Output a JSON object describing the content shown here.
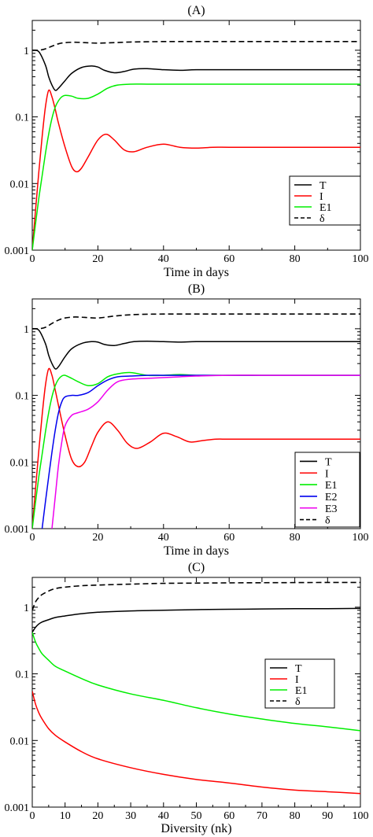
{
  "chart_data": [
    {
      "type": "line",
      "title": "(A)",
      "xlabel": "Time in days",
      "ylabel": "",
      "xlim": [
        0,
        100
      ],
      "ylim": [
        0.001,
        2.8
      ],
      "yscale": "log",
      "x_ticks": [
        "0",
        "20",
        "40",
        "60",
        "80",
        "100"
      ],
      "y_ticks": [
        "0.001",
        "0.01",
        "0.1",
        "1"
      ],
      "legend_position": "bottom-right",
      "series": [
        {
          "name": "T",
          "color": "#000000",
          "dash": false,
          "x": [
            0,
            2,
            4,
            5,
            6,
            7,
            8,
            10,
            12,
            15,
            18,
            20,
            22,
            25,
            28,
            31,
            35,
            40,
            45,
            50,
            60,
            70,
            80,
            90,
            100
          ],
          "y": [
            1.0,
            0.95,
            0.6,
            0.4,
            0.3,
            0.25,
            0.27,
            0.35,
            0.45,
            0.55,
            0.58,
            0.56,
            0.5,
            0.46,
            0.48,
            0.52,
            0.53,
            0.51,
            0.5,
            0.51,
            0.51,
            0.51,
            0.51,
            0.51,
            0.51
          ]
        },
        {
          "name": "I",
          "color": "#ff0000",
          "dash": false,
          "x": [
            0,
            1,
            2,
            3,
            4,
            5,
            6,
            7,
            8,
            10,
            12,
            13.5,
            15,
            17,
            20,
            22.5,
            25,
            28,
            31,
            35,
            40,
            45,
            50,
            55,
            60,
            70,
            80,
            90,
            100
          ],
          "y": [
            0.001,
            0.004,
            0.015,
            0.05,
            0.14,
            0.25,
            0.2,
            0.13,
            0.08,
            0.035,
            0.018,
            0.015,
            0.017,
            0.025,
            0.045,
            0.055,
            0.045,
            0.032,
            0.03,
            0.035,
            0.039,
            0.035,
            0.034,
            0.035,
            0.035,
            0.035,
            0.035,
            0.035,
            0.035
          ]
        },
        {
          "name": "E1",
          "color": "#00ee00",
          "dash": false,
          "x": [
            0,
            1,
            2,
            3,
            4,
            5,
            6,
            7,
            8,
            9,
            10,
            12,
            14,
            17,
            20,
            23,
            26,
            30,
            35,
            40,
            50,
            60,
            70,
            80,
            90,
            100
          ],
          "y": [
            0.001,
            0.0025,
            0.006,
            0.013,
            0.028,
            0.055,
            0.095,
            0.14,
            0.175,
            0.2,
            0.21,
            0.205,
            0.19,
            0.19,
            0.22,
            0.27,
            0.3,
            0.31,
            0.31,
            0.31,
            0.31,
            0.31,
            0.31,
            0.31,
            0.31,
            0.31
          ]
        },
        {
          "name": "δ",
          "color": "#000000",
          "dash": true,
          "x": [
            0,
            2,
            4,
            6,
            8,
            10,
            13,
            16,
            20,
            25,
            30,
            35,
            40,
            50,
            60,
            70,
            80,
            90,
            100
          ],
          "y": [
            1.0,
            1.0,
            1.05,
            1.15,
            1.25,
            1.3,
            1.32,
            1.3,
            1.28,
            1.3,
            1.33,
            1.34,
            1.35,
            1.35,
            1.35,
            1.35,
            1.35,
            1.35,
            1.35
          ]
        }
      ]
    },
    {
      "type": "line",
      "title": "(B)",
      "xlabel": "Time in days",
      "ylabel": "",
      "xlim": [
        0,
        100
      ],
      "ylim": [
        0.001,
        2.8
      ],
      "yscale": "log",
      "x_ticks": [
        "0",
        "20",
        "40",
        "60",
        "80",
        "100"
      ],
      "y_ticks": [
        "0.001",
        "0.01",
        "0.1",
        "1"
      ],
      "legend_position": "bottom-right",
      "series": [
        {
          "name": "T",
          "color": "#000000",
          "dash": false,
          "x": [
            0,
            2,
            4,
            5,
            6,
            7,
            8,
            10,
            12,
            15,
            18,
            20,
            22,
            25,
            28,
            31,
            35,
            40,
            45,
            50,
            60,
            70,
            80,
            90,
            100
          ],
          "y": [
            1.0,
            0.95,
            0.6,
            0.4,
            0.3,
            0.25,
            0.27,
            0.38,
            0.5,
            0.6,
            0.64,
            0.63,
            0.58,
            0.56,
            0.6,
            0.64,
            0.65,
            0.64,
            0.63,
            0.64,
            0.64,
            0.64,
            0.64,
            0.64,
            0.64
          ]
        },
        {
          "name": "I",
          "color": "#ff0000",
          "dash": false,
          "x": [
            0,
            1,
            2,
            3,
            4,
            5,
            6,
            7,
            8,
            10,
            12,
            14,
            16,
            18,
            20,
            23,
            26,
            29,
            32,
            36,
            40,
            44,
            48,
            52,
            56,
            60,
            70,
            80,
            90,
            100
          ],
          "y": [
            0.001,
            0.004,
            0.015,
            0.05,
            0.14,
            0.25,
            0.2,
            0.12,
            0.07,
            0.025,
            0.011,
            0.0085,
            0.01,
            0.017,
            0.028,
            0.04,
            0.03,
            0.019,
            0.016,
            0.02,
            0.027,
            0.024,
            0.02,
            0.021,
            0.022,
            0.022,
            0.022,
            0.022,
            0.022,
            0.022
          ]
        },
        {
          "name": "E1",
          "color": "#00ee00",
          "dash": false,
          "x": [
            0,
            1,
            2,
            3,
            4,
            5,
            6,
            7,
            8,
            9,
            10,
            12,
            14,
            17,
            20,
            23,
            26,
            30,
            35,
            40,
            45,
            50,
            60,
            70,
            80,
            90,
            100
          ],
          "y": [
            0.001,
            0.0025,
            0.006,
            0.013,
            0.028,
            0.055,
            0.095,
            0.14,
            0.175,
            0.195,
            0.2,
            0.18,
            0.16,
            0.14,
            0.15,
            0.19,
            0.21,
            0.22,
            0.2,
            0.2,
            0.205,
            0.2,
            0.2,
            0.2,
            0.2,
            0.2,
            0.2
          ]
        },
        {
          "name": "E2",
          "color": "#0000ee",
          "dash": false,
          "x": [
            3,
            4,
            5,
            6,
            7,
            8,
            9,
            10,
            12,
            14,
            17,
            20,
            23,
            26,
            30,
            35,
            40,
            45,
            50,
            60,
            70,
            80,
            90,
            100
          ],
          "y": [
            0.001,
            0.0025,
            0.006,
            0.014,
            0.03,
            0.055,
            0.08,
            0.095,
            0.1,
            0.1,
            0.11,
            0.14,
            0.17,
            0.19,
            0.195,
            0.2,
            0.2,
            0.2,
            0.2,
            0.2,
            0.2,
            0.2,
            0.2,
            0.2
          ]
        },
        {
          "name": "E3",
          "color": "#ee00ee",
          "dash": false,
          "x": [
            6,
            7,
            8,
            9,
            10,
            12,
            14,
            17,
            20,
            23,
            26,
            30,
            35,
            40,
            45,
            50,
            60,
            70,
            80,
            90,
            100
          ],
          "y": [
            0.001,
            0.003,
            0.009,
            0.02,
            0.035,
            0.05,
            0.055,
            0.062,
            0.08,
            0.12,
            0.16,
            0.175,
            0.18,
            0.185,
            0.19,
            0.195,
            0.2,
            0.2,
            0.2,
            0.2,
            0.2
          ]
        },
        {
          "name": "δ",
          "color": "#000000",
          "dash": true,
          "x": [
            0,
            2,
            4,
            6,
            8,
            10,
            13,
            16,
            20,
            25,
            30,
            35,
            40,
            50,
            60,
            70,
            80,
            90,
            100
          ],
          "y": [
            1.0,
            1.0,
            1.05,
            1.2,
            1.35,
            1.45,
            1.5,
            1.48,
            1.45,
            1.55,
            1.62,
            1.65,
            1.66,
            1.66,
            1.66,
            1.66,
            1.66,
            1.66,
            1.66
          ]
        }
      ]
    },
    {
      "type": "line",
      "title": "(C)",
      "xlabel": "Diversity (nk)",
      "ylabel": "",
      "xlim": [
        0,
        100
      ],
      "ylim": [
        0.001,
        2.8
      ],
      "yscale": "log",
      "x_ticks": [
        "0",
        "10",
        "20",
        "30",
        "40",
        "50",
        "60",
        "70",
        "80",
        "90",
        "100"
      ],
      "y_ticks": [
        "0.001",
        "0.01",
        "0.1",
        "1"
      ],
      "legend_position": "center-right",
      "series": [
        {
          "name": "T",
          "color": "#000000",
          "dash": false,
          "x": [
            0,
            1,
            2,
            3,
            5,
            7,
            10,
            15,
            20,
            30,
            40,
            50,
            60,
            70,
            80,
            90,
            100
          ],
          "y": [
            0.42,
            0.5,
            0.56,
            0.6,
            0.65,
            0.7,
            0.74,
            0.8,
            0.84,
            0.88,
            0.9,
            0.92,
            0.93,
            0.94,
            0.95,
            0.95,
            0.96
          ]
        },
        {
          "name": "I",
          "color": "#ff0000",
          "dash": false,
          "x": [
            0,
            1,
            2,
            3,
            5,
            7,
            10,
            15,
            20,
            30,
            40,
            50,
            60,
            70,
            80,
            90,
            100
          ],
          "y": [
            0.055,
            0.035,
            0.026,
            0.021,
            0.015,
            0.012,
            0.0095,
            0.0068,
            0.0053,
            0.0039,
            0.0031,
            0.0026,
            0.0023,
            0.002,
            0.0018,
            0.0017,
            0.0016
          ]
        },
        {
          "name": "E1",
          "color": "#00ee00",
          "dash": false,
          "x": [
            0,
            1,
            2,
            3,
            5,
            7,
            10,
            15,
            20,
            30,
            40,
            50,
            60,
            70,
            80,
            90,
            100
          ],
          "y": [
            0.42,
            0.3,
            0.24,
            0.2,
            0.16,
            0.13,
            0.11,
            0.085,
            0.068,
            0.05,
            0.04,
            0.031,
            0.025,
            0.021,
            0.018,
            0.016,
            0.014
          ]
        },
        {
          "name": "δ",
          "color": "#000000",
          "dash": true,
          "x": [
            0,
            1,
            2,
            3,
            5,
            7,
            10,
            15,
            20,
            30,
            40,
            50,
            60,
            70,
            80,
            90,
            100
          ],
          "y": [
            0.9,
            1.2,
            1.4,
            1.55,
            1.75,
            1.9,
            2.0,
            2.1,
            2.15,
            2.22,
            2.28,
            2.3,
            2.32,
            2.33,
            2.34,
            2.35,
            2.35
          ]
        }
      ]
    }
  ]
}
